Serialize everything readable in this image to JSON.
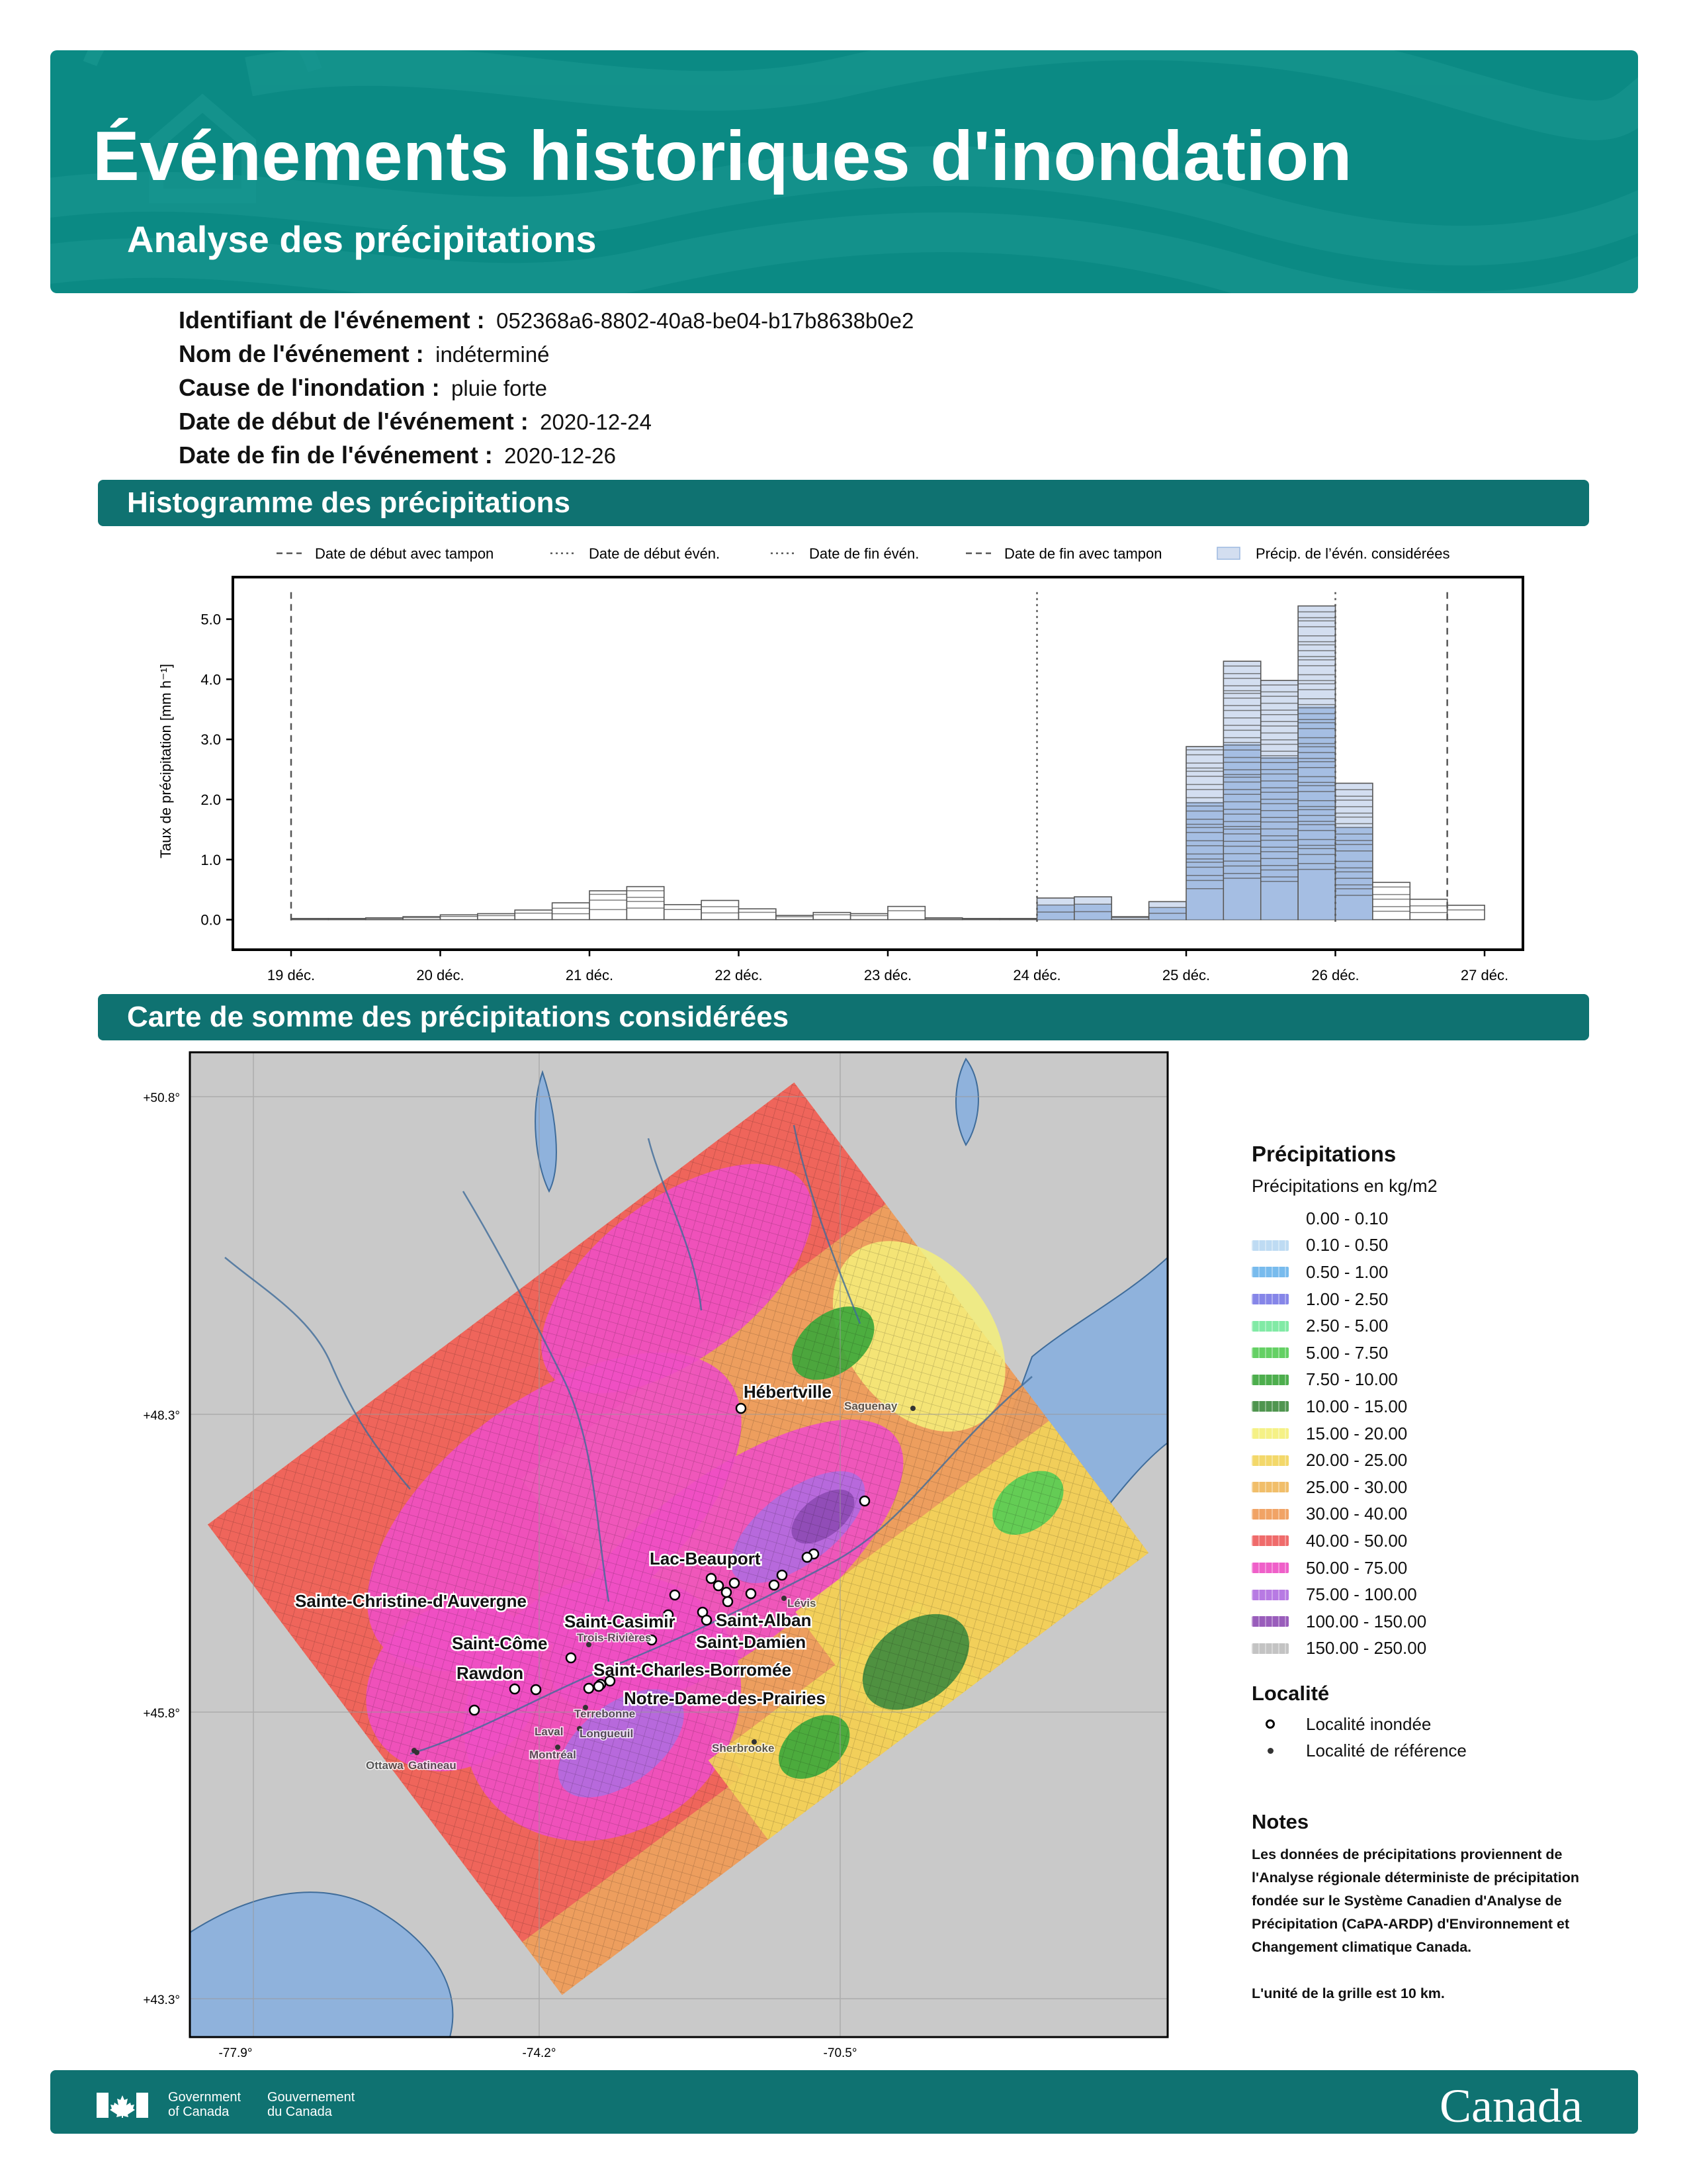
{
  "header": {
    "title": "Événements historiques d'inondation",
    "subtitle": "Analyse des précipitations"
  },
  "event": {
    "id_label": "Identifiant de l'événement :",
    "id_value": "052368a6-8802-40a8-be04-b17b8638b0e2",
    "name_label": "Nom de l'événement :",
    "name_value": "indéterminé",
    "cause_label": "Cause de l'inondation :",
    "cause_value": "pluie forte",
    "start_label": "Date de début de l'événement :",
    "start_value": "2020-12-24",
    "end_label": "Date de fin de l'événement :",
    "end_value": "2020-12-26"
  },
  "sections": {
    "histogram": "Histogramme des précipitations",
    "map": "Carte de somme des précipitations considérées"
  },
  "chart_data": {
    "type": "bar",
    "ylabel": "Taux de précipitation [mm h⁻¹]",
    "xlabel": "",
    "ylim": [
      -0.5,
      5.7
    ],
    "yticks": [
      0.0,
      1.0,
      2.0,
      3.0,
      4.0,
      5.0
    ],
    "ytick_labels": [
      "0.0",
      "1.0",
      "2.0",
      "3.0",
      "4.0",
      "5.0"
    ],
    "xtick_labels": [
      "19 déc.",
      "20 déc.",
      "21 déc.",
      "22 déc.",
      "23 déc.",
      "24 déc.",
      "25 déc.",
      "26 déc.",
      "27 déc."
    ],
    "legend": [
      {
        "label": "Date de début avec tampon",
        "style": "dashed"
      },
      {
        "label": "Date de début évén.",
        "style": "dotted"
      },
      {
        "label": "Date de fin évén.",
        "style": "dotted"
      },
      {
        "label": "Date de fin avec tampon",
        "style": "dashed"
      },
      {
        "label": "Précip. de l’évén. considérées",
        "style": "patch"
      }
    ],
    "bin_width_days": 0.25,
    "x_start_day": 19,
    "bins": [
      {
        "max": 0.02,
        "considered": false
      },
      {
        "max": 0.02,
        "considered": false
      },
      {
        "max": 0.03,
        "considered": false
      },
      {
        "max": 0.05,
        "considered": false
      },
      {
        "max": 0.08,
        "considered": false
      },
      {
        "max": 0.1,
        "considered": false
      },
      {
        "max": 0.16,
        "considered": false
      },
      {
        "max": 0.28,
        "considered": false
      },
      {
        "max": 0.48,
        "considered": false
      },
      {
        "max": 0.55,
        "considered": false
      },
      {
        "max": 0.25,
        "considered": false
      },
      {
        "max": 0.32,
        "considered": false
      },
      {
        "max": 0.18,
        "considered": false
      },
      {
        "max": 0.07,
        "considered": false
      },
      {
        "max": 0.12,
        "considered": false
      },
      {
        "max": 0.1,
        "considered": false
      },
      {
        "max": 0.22,
        "considered": false
      },
      {
        "max": 0.03,
        "considered": false
      },
      {
        "max": 0.02,
        "considered": false
      },
      {
        "max": 0.02,
        "considered": false
      },
      {
        "max": 0.36,
        "considered": true
      },
      {
        "max": 0.38,
        "considered": true
      },
      {
        "max": 0.05,
        "considered": true
      },
      {
        "max": 0.3,
        "considered": true
      },
      {
        "max": 2.88,
        "considered": true
      },
      {
        "max": 4.3,
        "considered": true
      },
      {
        "max": 3.98,
        "considered": true
      },
      {
        "max": 5.22,
        "considered": true
      },
      {
        "max": 2.27,
        "considered": true
      },
      {
        "max": 0.62,
        "considered": false
      },
      {
        "max": 0.34,
        "considered": false
      },
      {
        "max": 0.24,
        "considered": false
      }
    ],
    "lines": {
      "start_buffer": 19.0,
      "start_event": 24.0,
      "end_event": 26.0,
      "end_buffer": 26.75
    }
  },
  "map": {
    "lat_labels": [
      "+50.8°",
      "+48.3°",
      "+45.8°",
      "+43.3°"
    ],
    "lon_labels": [
      "-77.9°",
      "-74.2°",
      "-70.5°"
    ],
    "localities_flooded": [
      "Hébertville",
      "Lac-Beauport",
      "Sainte-Christine-d'Auvergne",
      "Saint-Casimir",
      "Saint-Alban",
      "Saint-Côme",
      "Saint-Damien",
      "Rawdon",
      "Saint-Charles-Borromée",
      "Notre-Dame-des-Prairies"
    ],
    "localities_reference": [
      "Saguenay",
      "Lévis",
      "Trois-Rivières",
      "Terrebonne",
      "Longueuil",
      "Laval",
      "Montréal",
      "Ottawa",
      "Gatineau",
      "Sherbrooke"
    ]
  },
  "legend": {
    "title": "Précipitations",
    "subtitle": "Précipitations en kg/m2",
    "classes": [
      {
        "label": "0.00 - 0.10",
        "color": "#ffffff"
      },
      {
        "label": "0.10 - 0.50",
        "color": "#b8d8f2"
      },
      {
        "label": "0.50 - 1.00",
        "color": "#6ab4ec"
      },
      {
        "label": "1.00 - 2.50",
        "color": "#7a7ae6"
      },
      {
        "label": "2.50 - 5.00",
        "color": "#74e89c"
      },
      {
        "label": "5.00 - 7.50",
        "color": "#54cc54"
      },
      {
        "label": "7.50 - 10.00",
        "color": "#3aa63a"
      },
      {
        "label": "10.00 - 15.00",
        "color": "#3d8a3d"
      },
      {
        "label": "15.00 - 20.00",
        "color": "#f5f07a"
      },
      {
        "label": "20.00 - 25.00",
        "color": "#f2d45a"
      },
      {
        "label": "25.00 - 30.00",
        "color": "#f0b85a"
      },
      {
        "label": "30.00 - 40.00",
        "color": "#f09a55"
      },
      {
        "label": "40.00 - 50.00",
        "color": "#ee5b5b"
      },
      {
        "label": "50.00 - 75.00",
        "color": "#ee4fc4"
      },
      {
        "label": "75.00 - 100.00",
        "color": "#b06ce0"
      },
      {
        "label": "100.00 - 150.00",
        "color": "#8e4cb4"
      },
      {
        "label": "150.00 - 250.00",
        "color": "#bdbdbd"
      }
    ],
    "locality_title": "Localité",
    "flooded_label": "Localité inondée",
    "reference_label": "Localité de référence",
    "notes_title": "Notes",
    "notes_text": "Les données de précipitations proviennent de l'Analyse régionale déterministe de précipitation fondée sur le Système Canadien d'Analyse de Précipitation (CaPA-ARDP) d'Environnement et Changement climatique Canada.",
    "notes_text_2": "L'unité de la grille est 10 km."
  },
  "footer": {
    "gov_en": "Government\nof Canada",
    "gov_fr": "Gouvernement\ndu Canada",
    "wordmark": "Canada"
  },
  "colors": {
    "banner": "#0b8a84",
    "section_bar": "#0f7271",
    "bar_fill": "#9cb8e0",
    "bar_fill_light": "#d3def0"
  }
}
